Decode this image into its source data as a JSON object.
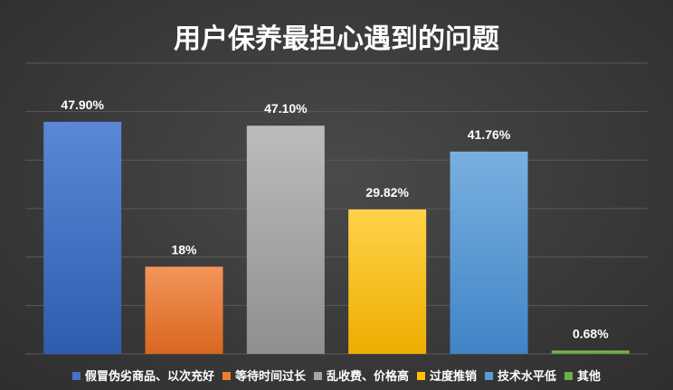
{
  "chart_data": {
    "type": "bar",
    "title": "用户保养最担心遇到的问题",
    "categories": [
      "假冒伪劣商品、以次充好",
      "等待时间过长",
      "乱收费、价格高",
      "过度推销",
      "技术水平低",
      "其他"
    ],
    "values": [
      47.9,
      18,
      47.1,
      29.82,
      41.76,
      0.68
    ],
    "value_labels": [
      "47.90%",
      "18%",
      "47.10%",
      "29.82%",
      "41.76%",
      "0.68%"
    ],
    "colors": [
      "#4472c4",
      "#ed7d31",
      "#a5a5a5",
      "#ffc000",
      "#5b9bd5",
      "#70ad47"
    ],
    "ylim": [
      0,
      60
    ],
    "grid": true,
    "legend_position": "bottom"
  }
}
